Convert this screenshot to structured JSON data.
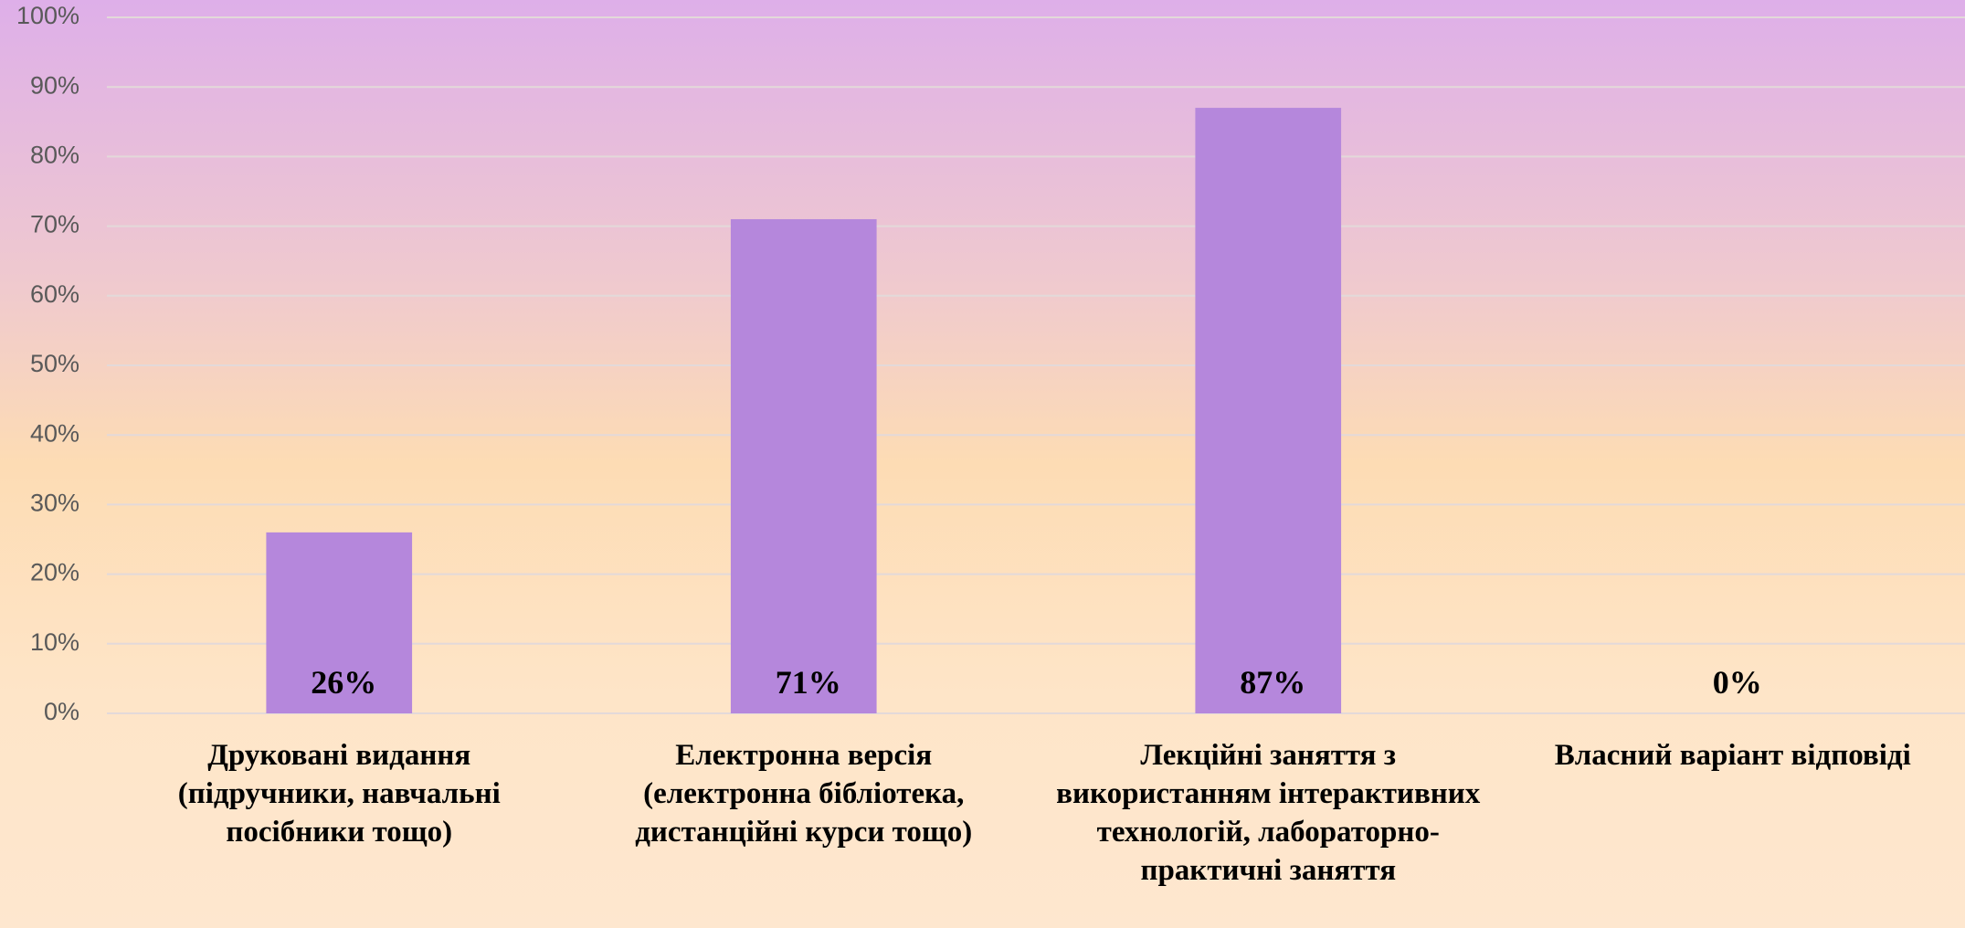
{
  "chart_data": {
    "type": "bar",
    "categories": [
      "Друковані видання (підручники, навчальні посібники тощо)",
      "Електронна версія (електронна бібліотека, дистанційні курси тощо)",
      "Лекційні заняття з використанням інтерактивних технологій, лабораторно-практичні заняття",
      "Власний варіант відповіді"
    ],
    "values": [
      26,
      71,
      87,
      0
    ],
    "value_labels": [
      "26%",
      "71%",
      "87%",
      "0%"
    ],
    "color": "#b587dc",
    "ylim": [
      0,
      100
    ],
    "yticks": [
      {
        "value": 0,
        "label": "0%"
      },
      {
        "value": 10,
        "label": "10%"
      },
      {
        "value": 20,
        "label": "20%"
      },
      {
        "value": 30,
        "label": "30%"
      },
      {
        "value": 40,
        "label": "40%"
      },
      {
        "value": 50,
        "label": "50%"
      },
      {
        "value": 60,
        "label": "60%"
      },
      {
        "value": 70,
        "label": "70%"
      },
      {
        "value": 80,
        "label": "80%"
      },
      {
        "value": 90,
        "label": "90%"
      },
      {
        "value": 100,
        "label": "100%"
      }
    ],
    "grid": true
  }
}
